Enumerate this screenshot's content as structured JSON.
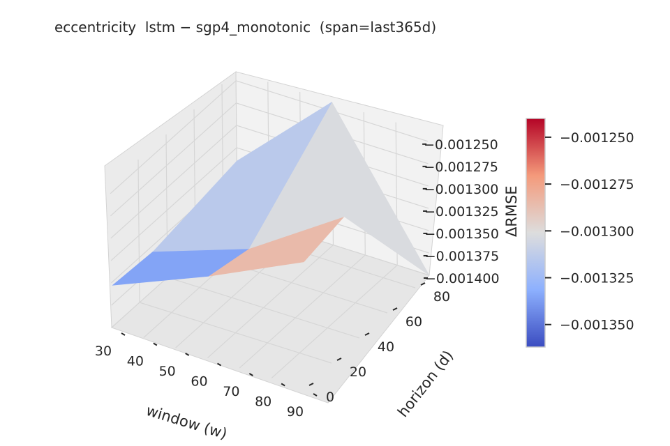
{
  "chart_data": {
    "type": "surface3d",
    "title": "eccentricity  lstm − sgp4_monotonic  (span=last365d)",
    "xlabel": "window (w)",
    "ylabel": "horizon (d)",
    "zlabel": "ΔRMSE",
    "colormap": "coolwarm",
    "x_ticks": [
      "30",
      "40",
      "50",
      "60",
      "70",
      "80",
      "90"
    ],
    "y_ticks": [
      "0",
      "20",
      "40",
      "60",
      "80"
    ],
    "z_ticks": [
      "−0.001250",
      "−0.001275",
      "−0.001300",
      "−0.001325",
      "−0.001350",
      "−0.001375",
      "−0.001400"
    ],
    "colorbar_ticks": [
      "−0.001250",
      "−0.001275",
      "−0.001300",
      "−0.001325",
      "−0.001350"
    ],
    "windows": [
      30,
      60,
      90
    ],
    "horizons": [
      1,
      30,
      90
    ],
    "z": [
      [
        -0.001354,
        -0.001357,
        -0.00134
      ],
      [
        -0.00131,
        -0.00132,
        -0.00124
      ],
      [
        -0.00126,
        -0.00125,
        -0.0014
      ]
    ],
    "colorbar_range": [
      -0.001362,
      -0.00124
    ]
  }
}
